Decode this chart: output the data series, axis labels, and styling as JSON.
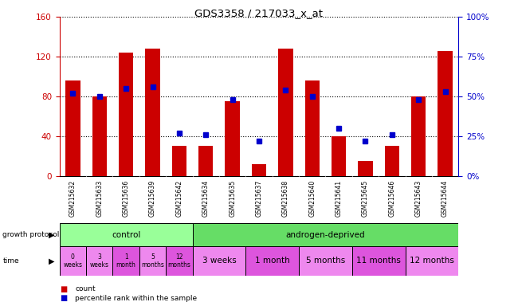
{
  "title": "GDS3358 / 217033_x_at",
  "samples": [
    "GSM215632",
    "GSM215633",
    "GSM215636",
    "GSM215639",
    "GSM215642",
    "GSM215634",
    "GSM215635",
    "GSM215637",
    "GSM215638",
    "GSM215640",
    "GSM215641",
    "GSM215645",
    "GSM215646",
    "GSM215643",
    "GSM215644"
  ],
  "counts": [
    96,
    80,
    124,
    128,
    30,
    30,
    75,
    12,
    128,
    96,
    40,
    15,
    30,
    80,
    126
  ],
  "percentiles": [
    52,
    50,
    55,
    56,
    27,
    26,
    48,
    22,
    54,
    50,
    30,
    22,
    26,
    48,
    53
  ],
  "ylim_left": [
    0,
    160
  ],
  "ylim_right": [
    0,
    100
  ],
  "yticks_left": [
    0,
    40,
    80,
    120,
    160
  ],
  "yticks_right": [
    0,
    25,
    50,
    75,
    100
  ],
  "bar_color": "#cc0000",
  "dot_color": "#0000cc",
  "bg_color": "#ffffff",
  "plot_bg": "#ffffff",
  "grid_color": "#000000",
  "left_axis_color": "#cc0000",
  "right_axis_color": "#0000cc",
  "growth_protocol_label": "growth protocol",
  "time_label": "time",
  "groups": [
    {
      "label": "control",
      "color": "#99ff99",
      "start": 0,
      "end": 5
    },
    {
      "label": "androgen-deprived",
      "color": "#66dd66",
      "start": 5,
      "end": 15
    }
  ],
  "time_groups": [
    {
      "label": "0\nweeks",
      "color": "#ee88ee",
      "cols": 1
    },
    {
      "label": "3\nweeks",
      "color": "#ee88ee",
      "cols": 1
    },
    {
      "label": "1\nmonth",
      "color": "#dd55dd",
      "cols": 1
    },
    {
      "label": "5\nmonths",
      "color": "#ee88ee",
      "cols": 1
    },
    {
      "label": "12\nmonths",
      "color": "#dd55dd",
      "cols": 1
    },
    {
      "label": "3 weeks",
      "color": "#ee88ee",
      "cols": 2
    },
    {
      "label": "1 month",
      "color": "#dd55dd",
      "cols": 2
    },
    {
      "label": "5 months",
      "color": "#ee88ee",
      "cols": 2
    },
    {
      "label": "11 months",
      "color": "#dd55dd",
      "cols": 2
    },
    {
      "label": "12 months",
      "color": "#ee88ee",
      "cols": 2
    }
  ],
  "sample_bg_color": "#cccccc",
  "legend_count_color": "#cc0000",
  "legend_pct_color": "#0000cc",
  "n_samples": 15,
  "figwidth": 6.5,
  "figheight": 3.84,
  "dpi": 100
}
